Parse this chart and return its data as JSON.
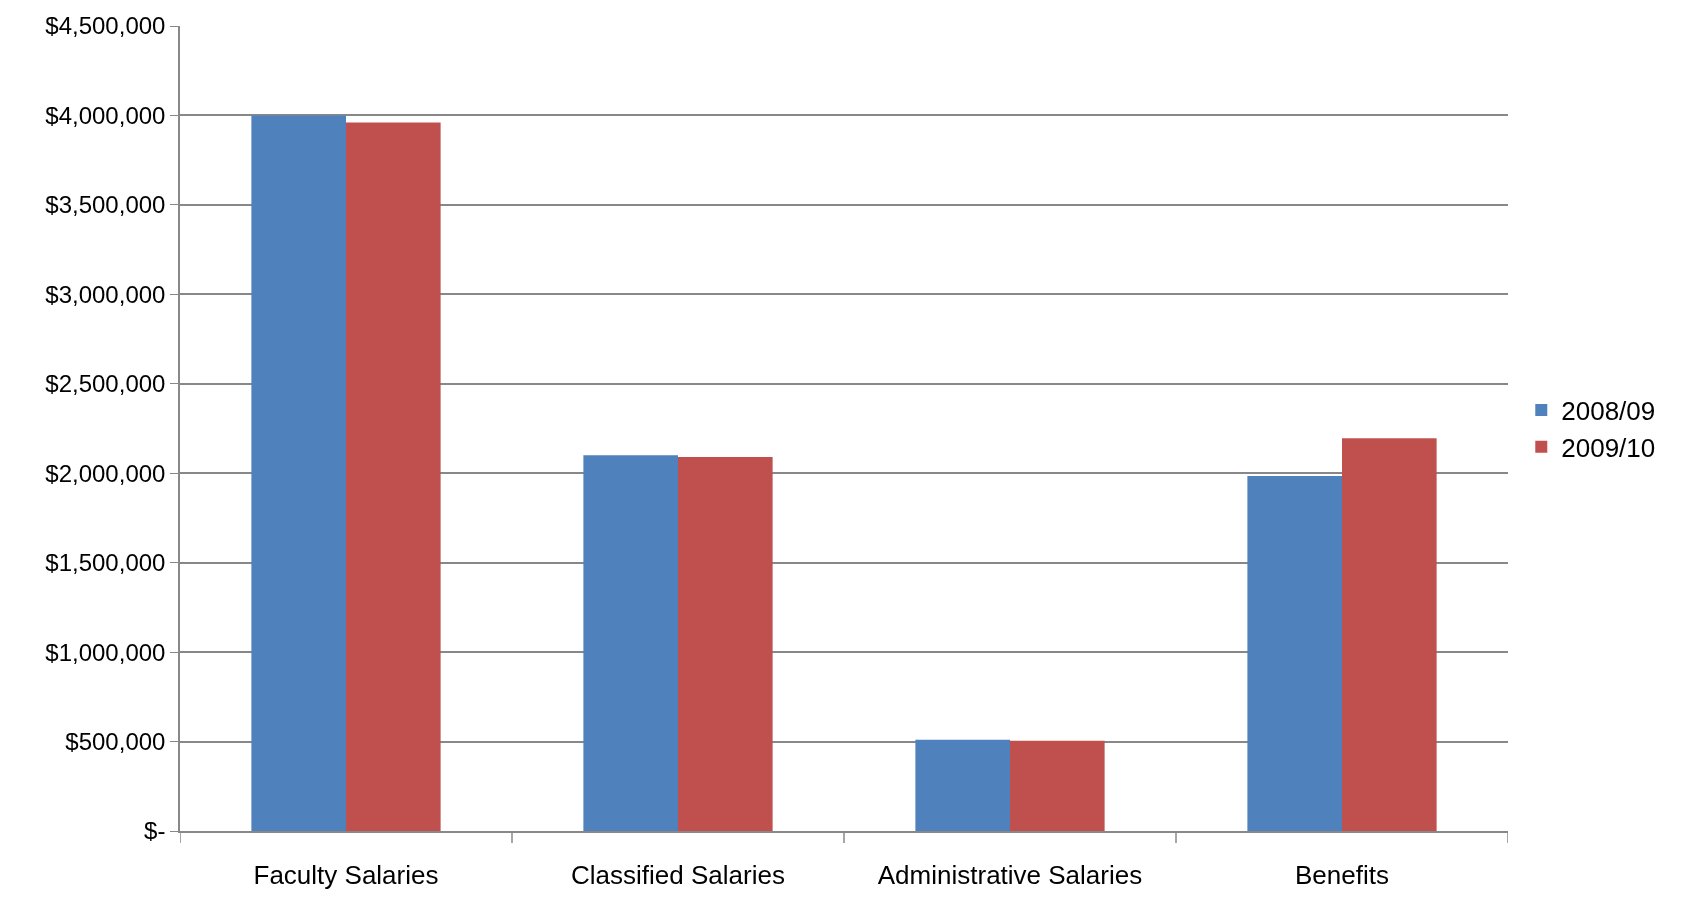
{
  "chart_data": {
    "type": "bar",
    "categories": [
      "Faculty Salaries",
      "Classified Salaries",
      "Administrative Salaries",
      "Benefits"
    ],
    "series": [
      {
        "name": "2008/09",
        "color": "#4f81bd",
        "values": [
          4000000,
          2100000,
          510000,
          1985000
        ]
      },
      {
        "name": "2009/10",
        "color": "#c0504d",
        "values": [
          3960000,
          2090000,
          505000,
          2195000
        ]
      }
    ],
    "ylim": [
      0,
      4500000
    ],
    "yticks": [
      {
        "value": 0,
        "label": "$-"
      },
      {
        "value": 500000,
        "label": "$500,000"
      },
      {
        "value": 1000000,
        "label": "$1,000,000"
      },
      {
        "value": 1500000,
        "label": "$1,500,000"
      },
      {
        "value": 2000000,
        "label": "$2,000,000"
      },
      {
        "value": 2500000,
        "label": "$2,500,000"
      },
      {
        "value": 3000000,
        "label": "$3,000,000"
      },
      {
        "value": 3500000,
        "label": "$3,500,000"
      },
      {
        "value": 4000000,
        "label": "$4,000,000"
      },
      {
        "value": 4500000,
        "label": "$4,500,000"
      }
    ],
    "grid": "y",
    "legend": "right"
  }
}
